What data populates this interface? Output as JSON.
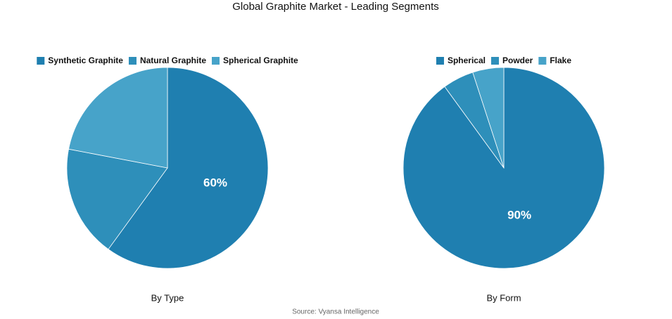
{
  "title": "Global Graphite Market - Leading Segments",
  "source": "Source: Vyansa Intelligence",
  "chart_data": [
    {
      "type": "pie",
      "title": "By Type",
      "categories": [
        "Synthetic Graphite",
        "Natural Graphite",
        "Spherical Graphite"
      ],
      "values": [
        60,
        18,
        22
      ],
      "value_labels": [
        "60%",
        null,
        null
      ],
      "colors": [
        "#1f7fb0",
        "#2e8fba",
        "#47a3c9"
      ]
    },
    {
      "type": "pie",
      "title": "By Form",
      "categories": [
        "Spherical",
        "Powder",
        "Flake"
      ],
      "values": [
        90,
        5,
        5
      ],
      "value_labels": [
        "90%",
        null,
        null
      ],
      "colors": [
        "#1f7fb0",
        "#2e8fba",
        "#47a3c9"
      ]
    }
  ]
}
